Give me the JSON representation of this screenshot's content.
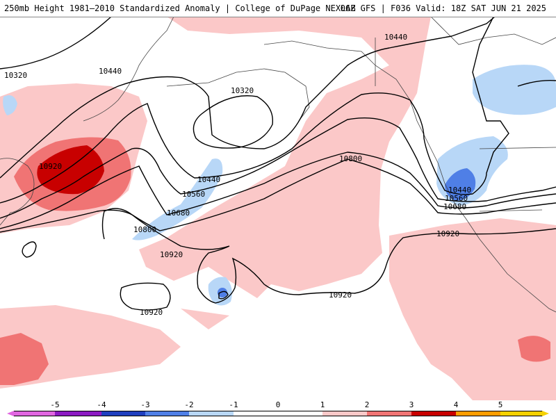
{
  "header": {
    "left": "250mb Height 1981–2010 Standardized Anomaly | College of DuPage NEXLAB",
    "right": "06Z GFS | F036 Valid: 18Z SAT JUN 21 2025"
  },
  "map": {
    "contour_labels": [
      {
        "id": "10320-west",
        "text": "10320"
      },
      {
        "id": "10440-northwest",
        "text": "10440"
      },
      {
        "id": "10320-low",
        "text": "10320"
      },
      {
        "id": "10440-north",
        "text": "10440"
      },
      {
        "id": "10920-japan",
        "text": "10920"
      },
      {
        "id": "10440-mid",
        "text": "10440"
      },
      {
        "id": "10560-mid",
        "text": "10560"
      },
      {
        "id": "10680-mid",
        "text": "10680"
      },
      {
        "id": "10800-mid",
        "text": "10800"
      },
      {
        "id": "10800-east",
        "text": "10800"
      },
      {
        "id": "10920-central",
        "text": "10920"
      },
      {
        "id": "10920-southwest",
        "text": "10920"
      },
      {
        "id": "10920-south",
        "text": "10920"
      },
      {
        "id": "10440-trough",
        "text": "10440"
      },
      {
        "id": "10560-trough",
        "text": "10560"
      },
      {
        "id": "10680-trough",
        "text": "10680"
      },
      {
        "id": "10920-east",
        "text": "10920"
      }
    ],
    "anomaly_colors": {
      "neg5": "#e066e0",
      "neg4": "#8c1ac2",
      "neg3": "#1f3fbf",
      "neg2": "#4f7fe6",
      "neg1": "#b8d7f7",
      "zero": "#ffffff",
      "pos1": "#fbc8c8",
      "pos2": "#f07474",
      "pos3": "#c80000",
      "pos4": "#ff9d00",
      "pos5": "#f5d100"
    }
  },
  "colorbar": {
    "ticks": [
      "-5",
      "-4",
      "-3",
      "-2",
      "-1",
      "0",
      "1",
      "2",
      "3",
      "4",
      "5"
    ]
  }
}
